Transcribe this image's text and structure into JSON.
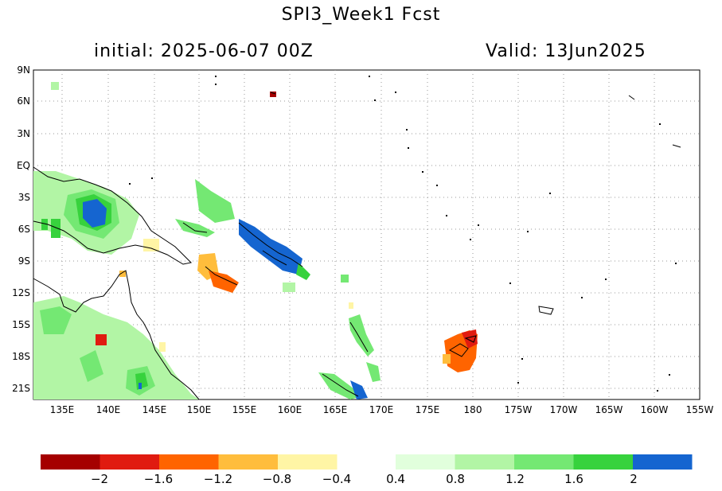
{
  "title": "SPI3_Week1  Fcst",
  "initial_text": "initial: 2025-06-07  00Z",
  "valid_text": "Valid: 13Jun2025",
  "lat_labels": [
    "9N",
    "6N",
    "3N",
    "EQ",
    "3S",
    "6S",
    "9S",
    "12S",
    "15S",
    "18S",
    "21S"
  ],
  "lon_labels": [
    "135E",
    "140E",
    "145E",
    "150E",
    "155E",
    "160E",
    "165E",
    "170E",
    "175E",
    "180",
    "175W",
    "170W",
    "165W",
    "160W",
    "155W"
  ],
  "colorbar": {
    "colors_negative": [
      "#a50000",
      "#e01b10",
      "#ff6400",
      "#ffbd3c",
      "#fff5a5"
    ],
    "colors_positive": [
      "#e1ffdc",
      "#b2f5a5",
      "#74e873",
      "#37d23d",
      "#1565d0"
    ],
    "labels": [
      "−2",
      "−1.6",
      "−1.2",
      "−0.8",
      "−0.4",
      "0.4",
      "0.8",
      "1.2",
      "1.6",
      "2"
    ]
  }
}
